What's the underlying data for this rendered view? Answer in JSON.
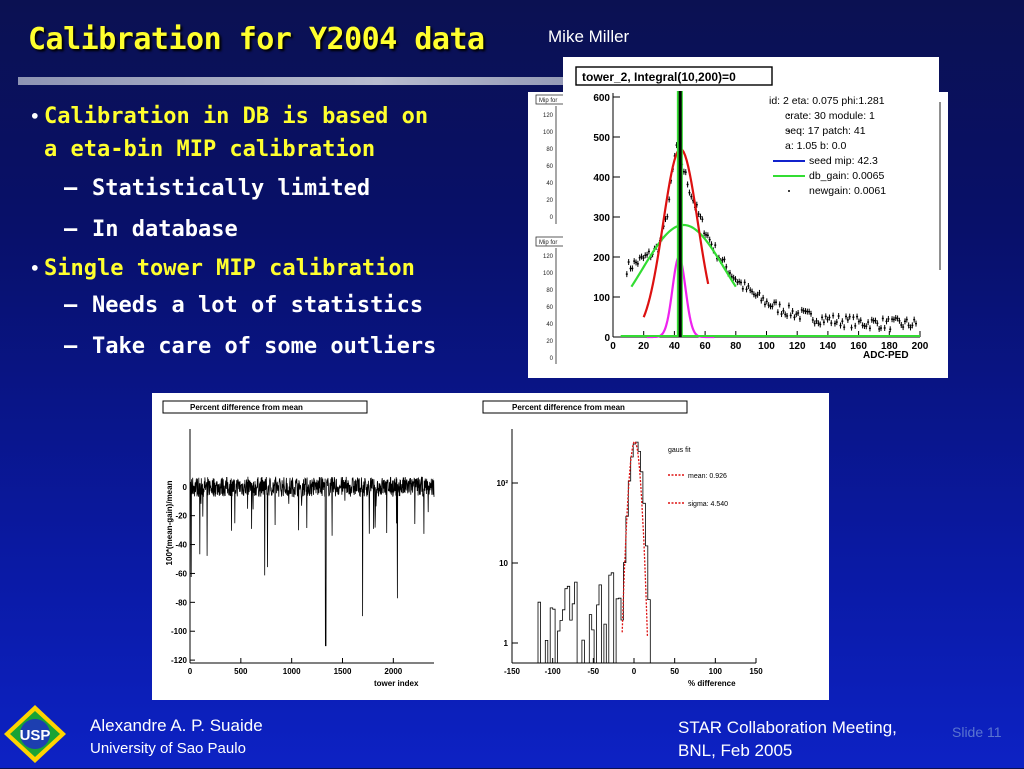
{
  "title": "Calibration for Y2004 data",
  "author_top": "Mike Miller",
  "bullets": [
    {
      "text": "Calibration in DB is based on",
      "cont": "a eta-bin MIP calibration",
      "subs": [
        "Statistically limited",
        "In database"
      ]
    },
    {
      "text": "Single tower MIP calibration",
      "cont": "",
      "subs": [
        "Needs a lot of statistics",
        "Take care of some outliers"
      ]
    }
  ],
  "bullet_symbol": "•",
  "dash_symbol": "–",
  "upper_plot": {
    "title": "tower_2, Integral(10,200)=0",
    "xlabel": "ADC-PED",
    "x_ticks": [
      "0",
      "20",
      "40",
      "60",
      "80",
      "100",
      "120",
      "140",
      "160",
      "180",
      "200"
    ],
    "y_ticks": [
      "0",
      "100",
      "200",
      "300",
      "400",
      "500",
      "600"
    ],
    "stats": [
      "id: 2 eta: 0.075 phi:1.281",
      "crate: 30 module: 1",
      "seq: 17 patch: 41",
      "a: 1.05 b: 0.0",
      "seed mip: 42.3",
      "db_gain: 0.0065",
      "newgain: 0.0061"
    ],
    "behind_label_1": "Mip for",
    "behind_label_2": "Mip for",
    "behind_ticks_1": [
      "120",
      "100",
      "80",
      "60",
      "40",
      "20",
      "0"
    ],
    "behind_ticks_2": [
      "120",
      "100",
      "80",
      "60",
      "40",
      "20",
      "0"
    ],
    "colors": {
      "fit_red": "#dd1111",
      "fit_green": "#33dd33",
      "fit_magenta": "#ee22ee",
      "seed_line": "#1122cc"
    }
  },
  "lower_left_plot": {
    "title": "Percent difference from mean",
    "ylabel": "100*(mean-gain)/mean",
    "xlabel": "tower index",
    "x_ticks": [
      "0",
      "500",
      "1000",
      "1500",
      "2000"
    ],
    "y_ticks": [
      "0",
      "-20",
      "-40",
      "-60",
      "-80",
      "-100",
      "-120"
    ]
  },
  "lower_right_plot": {
    "title": "Percent difference from mean",
    "xlabel": "% difference",
    "x_ticks": [
      "-150",
      "-100",
      "-50",
      "0",
      "50",
      "100",
      "150"
    ],
    "y_ticks": [
      "10²",
      "10",
      "1"
    ],
    "legend_title": "gaus fit",
    "legend_mean": "mean: 0.926",
    "legend_sigma": "sigma: 4.540"
  },
  "footer": {
    "name": "Alexandre A. P. Suaide",
    "university": "University of Sao Paulo",
    "meeting_line1": "STAR Collaboration Meeting,",
    "meeting_line2": "BNL, Feb 2005",
    "slide": "Slide 11",
    "logo_text": "USP"
  }
}
